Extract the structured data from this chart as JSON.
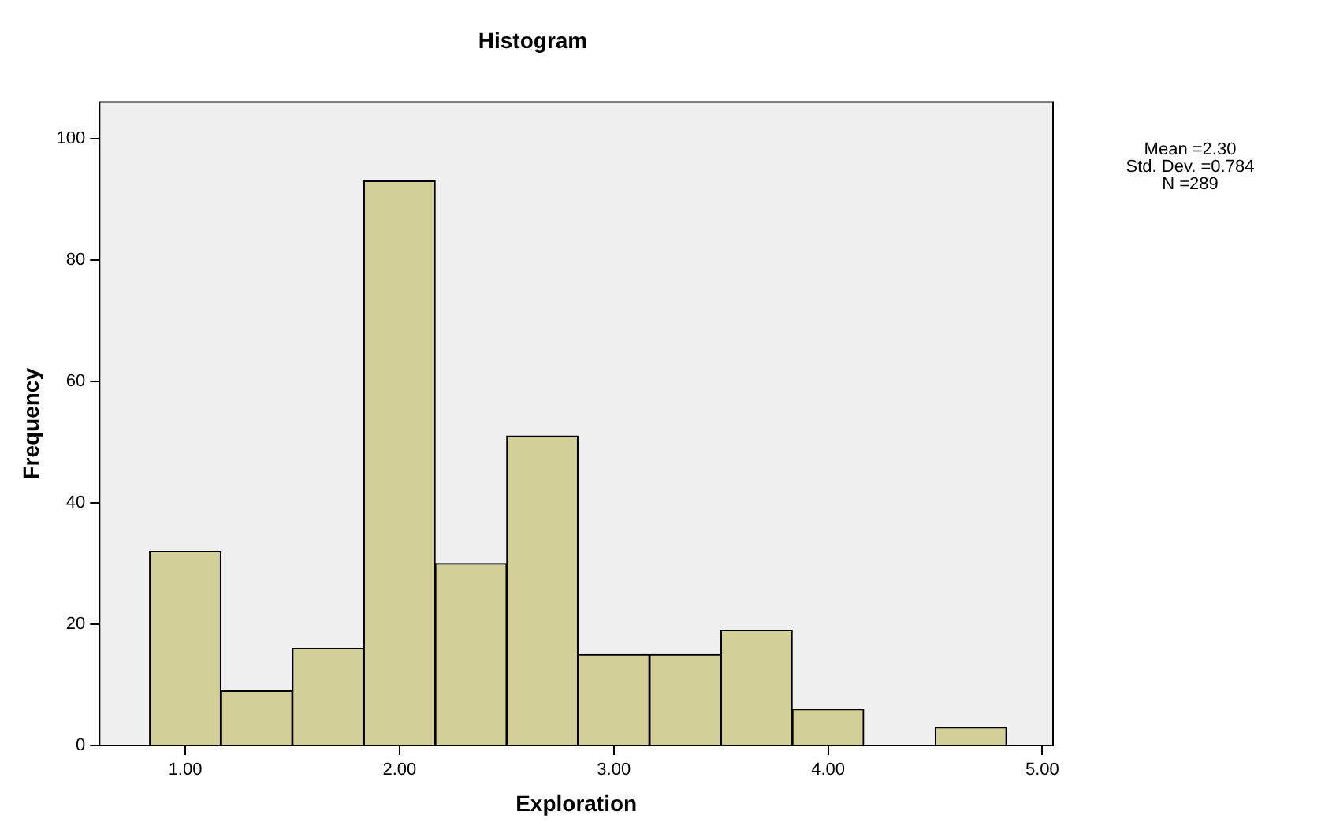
{
  "chart_data": {
    "type": "histogram",
    "title": "Histogram",
    "xlabel": "Exploration",
    "ylabel": "Frequency",
    "bins": [
      0.833,
      1.167,
      1.5,
      1.833,
      2.167,
      2.5,
      2.833,
      3.167,
      3.5,
      3.833,
      4.167,
      4.5,
      4.833
    ],
    "values": [
      32,
      9,
      16,
      93,
      30,
      51,
      15,
      15,
      19,
      6,
      0,
      3
    ],
    "color": "#d3cf99",
    "xlim": [
      0.6,
      5.05
    ],
    "xticks": [
      {
        "value": 1,
        "label": "1.00"
      },
      {
        "value": 2,
        "label": "2.00"
      },
      {
        "value": 3,
        "label": "3.00"
      },
      {
        "value": 4,
        "label": "4.00"
      },
      {
        "value": 5,
        "label": "5.00"
      }
    ],
    "ylim": [
      0,
      106
    ],
    "yticks": [
      0,
      20,
      40,
      60,
      80,
      100
    ],
    "grid": false,
    "legend": false,
    "annotations": [
      "Mean =2.30\nStd. Dev. =0.784\nN =289"
    ]
  }
}
